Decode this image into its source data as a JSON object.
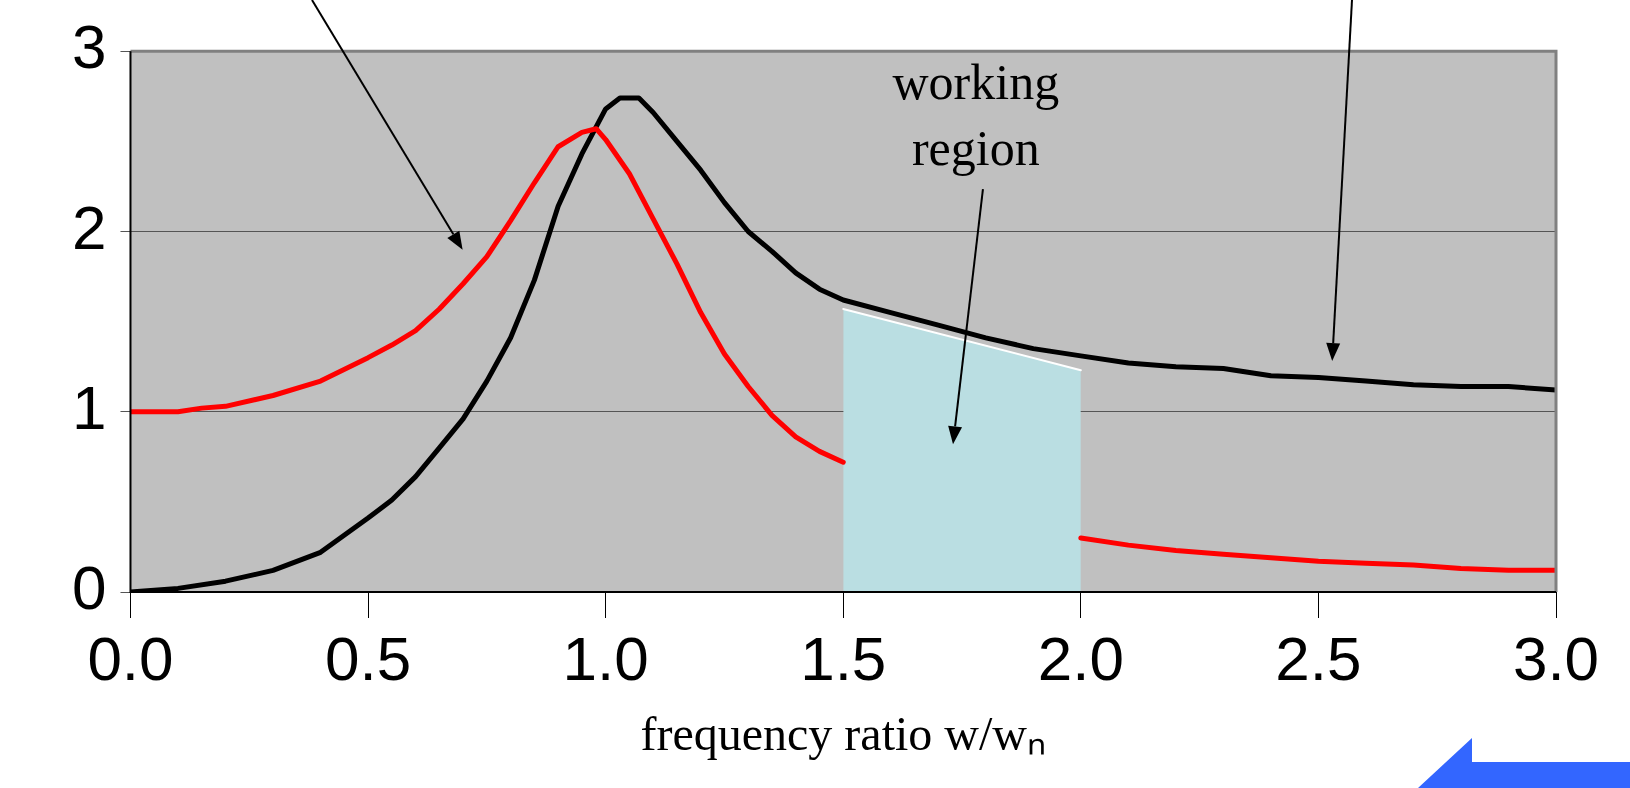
{
  "chart_data": {
    "type": "line",
    "xlabel": "frequency ratio w/wₙ",
    "xlim": [
      0,
      3
    ],
    "xticks": [
      {
        "value": 0,
        "label": "0.0"
      },
      {
        "value": 0.5,
        "label": "0.5"
      },
      {
        "value": 1,
        "label": "1.0"
      },
      {
        "value": 1.5,
        "label": "1.5"
      },
      {
        "value": 2,
        "label": "2.0"
      },
      {
        "value": 2.5,
        "label": "2.5"
      },
      {
        "value": 3,
        "label": "3.0"
      }
    ],
    "ylim": [
      0,
      3
    ],
    "yticks": [
      0,
      1,
      2,
      3
    ],
    "grid": "y",
    "legend": false,
    "marker": "none",
    "annotations": [
      "working region"
    ],
    "series": [
      {
        "type": "area",
        "color": "#badee2",
        "x": [
          1.5,
          2.0
        ],
        "values": [
          1.57,
          1.23
        ]
      },
      {
        "color": "#ff0000",
        "x": [
          0,
          0.1,
          0.15,
          0.2,
          0.3,
          0.4,
          0.5,
          0.55,
          0.6,
          0.65,
          0.7,
          0.75,
          0.8,
          0.85,
          0.9,
          0.95,
          0.98,
          1.0,
          1.05,
          1.1,
          1.15,
          1.2,
          1.25,
          1.3,
          1.35,
          1.4,
          1.45,
          1.5,
          1.6,
          1.7,
          1.8,
          1.9,
          2.0,
          2.1,
          2.2,
          2.3,
          2.4,
          2.5,
          2.6,
          2.7,
          2.8,
          2.9,
          3.0
        ],
        "values": [
          1.0,
          1.0,
          1.02,
          1.03,
          1.09,
          1.17,
          1.3,
          1.37,
          1.45,
          1.57,
          1.71,
          1.86,
          2.06,
          2.27,
          2.47,
          2.55,
          2.57,
          2.51,
          2.32,
          2.07,
          1.82,
          1.55,
          1.32,
          1.14,
          0.98,
          0.86,
          0.78,
          0.72,
          null,
          null,
          null,
          null,
          0.3,
          0.26,
          0.23,
          0.21,
          0.19,
          0.17,
          0.16,
          0.15,
          0.13,
          0.12,
          0.12
        ]
      },
      {
        "color": "#000000",
        "x": [
          0,
          0.1,
          0.2,
          0.3,
          0.4,
          0.5,
          0.55,
          0.6,
          0.65,
          0.7,
          0.75,
          0.8,
          0.85,
          0.9,
          0.95,
          1.0,
          1.03,
          1.07,
          1.1,
          1.15,
          1.2,
          1.25,
          1.3,
          1.35,
          1.4,
          1.45,
          1.5,
          1.6,
          1.7,
          1.8,
          1.9,
          2.0,
          2.1,
          2.2,
          2.3,
          2.4,
          2.5,
          2.6,
          2.7,
          2.8,
          2.9,
          3.0
        ],
        "values": [
          0,
          0.02,
          0.06,
          0.12,
          0.22,
          0.41,
          0.51,
          0.64,
          0.8,
          0.96,
          1.17,
          1.41,
          1.73,
          2.14,
          2.43,
          2.68,
          2.74,
          2.74,
          2.66,
          2.5,
          2.34,
          2.16,
          2.0,
          1.89,
          1.77,
          1.68,
          1.62,
          1.55,
          1.48,
          1.41,
          1.35,
          1.31,
          1.27,
          1.25,
          1.24,
          1.2,
          1.19,
          1.17,
          1.15,
          1.14,
          1.14,
          1.12
        ]
      }
    ]
  }
}
